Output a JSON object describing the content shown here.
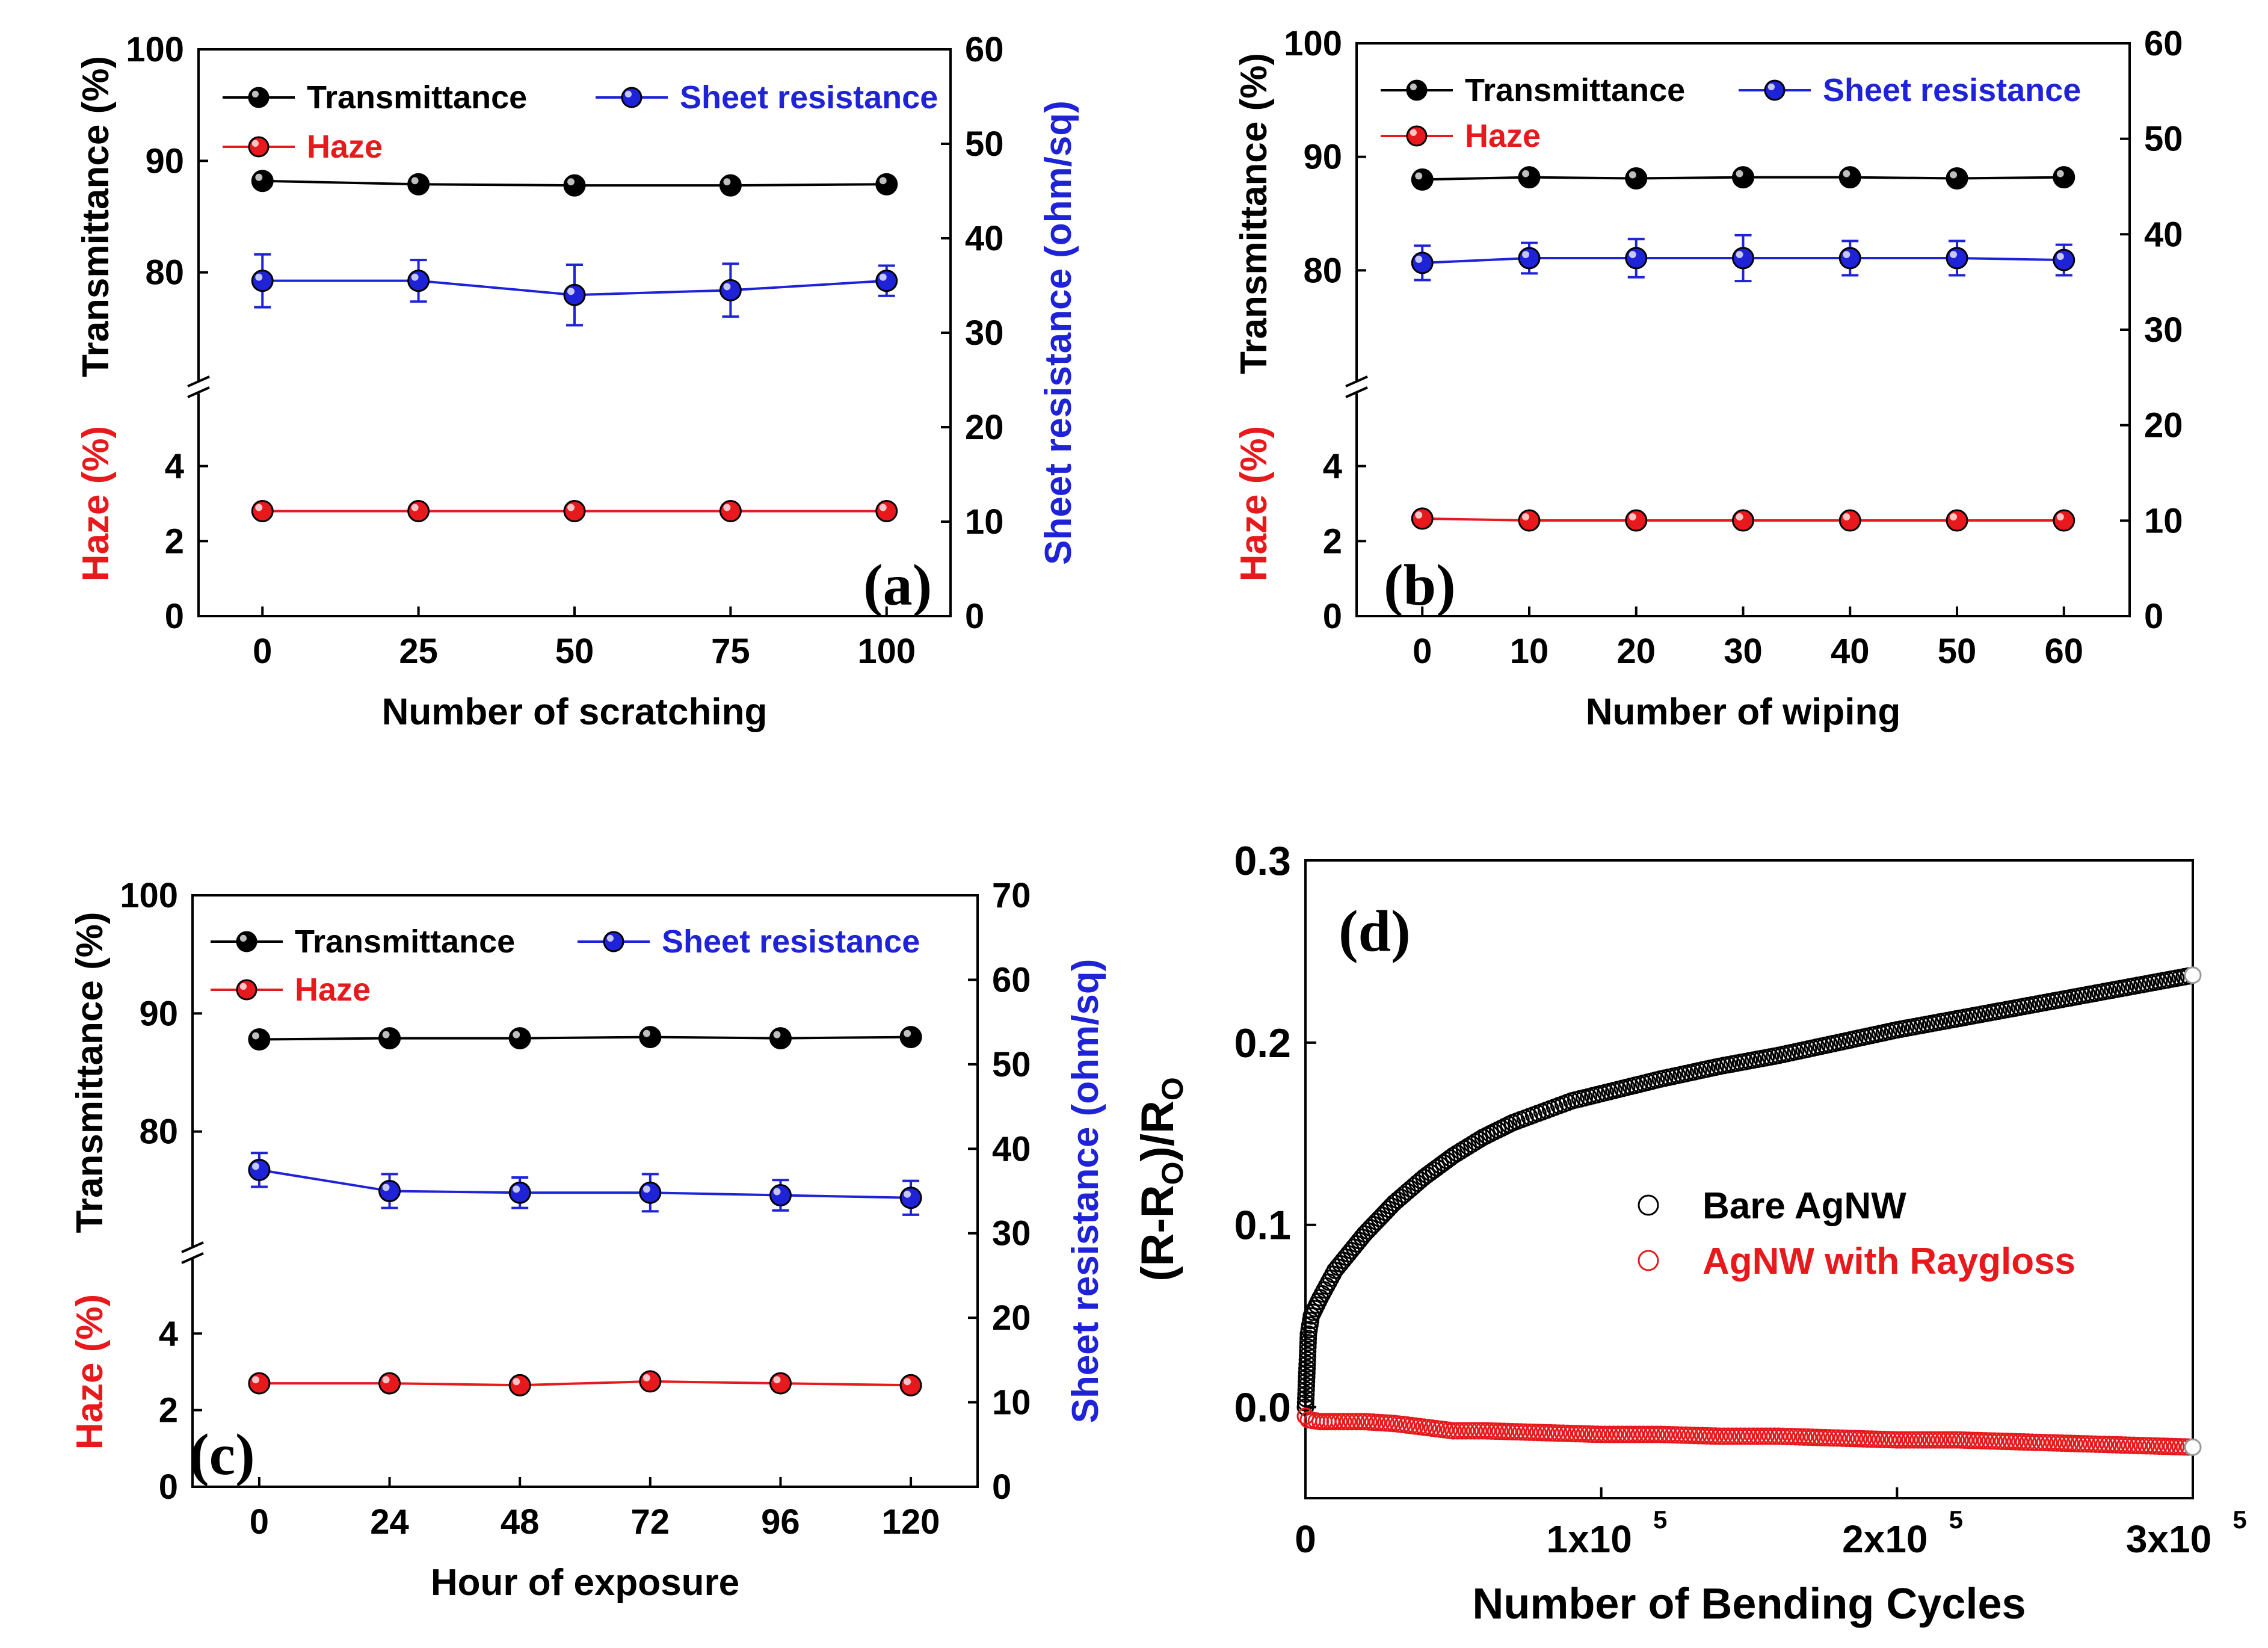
{
  "chart_data": [
    {
      "id": "a",
      "type": "line",
      "panel_label": "(a)",
      "xlabel": "Number of scratching",
      "x": [
        0,
        25,
        50,
        75,
        100
      ],
      "x_ticks": [
        "0",
        "25",
        "50",
        "75",
        "100"
      ],
      "ylabel_upper": "Transmittance (%)",
      "ylabel_lower": "Haze (%)",
      "ylabel_right": "Sheet resistance (ohm/sq)",
      "yticks_upper": [
        "80",
        "90",
        "100"
      ],
      "yticks_lower": [
        "0",
        "2",
        "4"
      ],
      "yticks_right": [
        "0",
        "10",
        "20",
        "30",
        "40",
        "50",
        "60"
      ],
      "ylim_upper": [
        70,
        100
      ],
      "ylim_lower": [
        0,
        6
      ],
      "ylim_right": [
        0,
        60
      ],
      "legend": {
        "transmittance": "Transmittance",
        "sheet": "Sheet resistance",
        "haze": "Haze"
      },
      "series": [
        {
          "name": "Transmittance",
          "axis": "left-upper",
          "color": "#000000",
          "values": [
            88.2,
            87.9,
            87.8,
            87.8,
            87.9
          ]
        },
        {
          "name": "Sheet resistance",
          "axis": "right",
          "color": "#1f23d8",
          "values": [
            35.5,
            35.5,
            34.0,
            34.5,
            35.5
          ],
          "errors": [
            2.8,
            2.2,
            3.2,
            2.8,
            1.6
          ]
        },
        {
          "name": "Haze",
          "axis": "left-lower",
          "color": "#e8191c",
          "values": [
            2.8,
            2.8,
            2.8,
            2.8,
            2.8
          ]
        }
      ]
    },
    {
      "id": "b",
      "type": "line",
      "panel_label": "(b)",
      "xlabel": "Number of wiping",
      "x": [
        0,
        10,
        20,
        30,
        40,
        50,
        60
      ],
      "x_ticks": [
        "0",
        "10",
        "20",
        "30",
        "40",
        "50",
        "60"
      ],
      "ylabel_upper": "Transmittance (%)",
      "ylabel_lower": "Haze (%)",
      "ylabel_right": "",
      "yticks_upper": [
        "80",
        "90",
        "100"
      ],
      "yticks_lower": [
        "0",
        "2",
        "4"
      ],
      "yticks_right": [
        "0",
        "10",
        "20",
        "30",
        "40",
        "50",
        "60"
      ],
      "ylim_upper": [
        70,
        100
      ],
      "ylim_lower": [
        0,
        6
      ],
      "ylim_right": [
        0,
        60
      ],
      "legend": {
        "transmittance": "Transmittance",
        "sheet": "Sheet resistance",
        "haze": "Haze"
      },
      "series": [
        {
          "name": "Transmittance",
          "axis": "left-upper",
          "color": "#000000",
          "values": [
            88.0,
            88.2,
            88.1,
            88.2,
            88.2,
            88.1,
            88.2
          ]
        },
        {
          "name": "Sheet resistance",
          "axis": "right",
          "color": "#1f23d8",
          "values": [
            37.0,
            37.5,
            37.5,
            37.5,
            37.5,
            37.5,
            37.3
          ],
          "errors": [
            1.8,
            1.6,
            2.0,
            2.4,
            1.8,
            1.8,
            1.6
          ]
        },
        {
          "name": "Haze",
          "axis": "left-lower",
          "color": "#e8191c",
          "values": [
            2.6,
            2.55,
            2.55,
            2.55,
            2.55,
            2.55,
            2.55
          ]
        }
      ]
    },
    {
      "id": "c",
      "type": "line",
      "panel_label": "(c)",
      "xlabel": "Hour of exposure",
      "x": [
        0,
        24,
        48,
        72,
        96,
        120
      ],
      "x_ticks": [
        "0",
        "24",
        "48",
        "72",
        "96",
        "120"
      ],
      "ylabel_upper": "Transmittance (%)",
      "ylabel_lower": "Haze (%)",
      "ylabel_right": "Sheet resistance (ohm/sq)",
      "yticks_upper": [
        "80",
        "90",
        "100"
      ],
      "yticks_lower": [
        "0",
        "2",
        "4"
      ],
      "yticks_right": [
        "0",
        "10",
        "20",
        "30",
        "40",
        "50",
        "60",
        "70"
      ],
      "ylim_upper": [
        70,
        100
      ],
      "ylim_lower": [
        0,
        6
      ],
      "ylim_right": [
        0,
        70
      ],
      "legend": {
        "transmittance": "Transmittance",
        "sheet": "Sheet resistance",
        "haze": "Haze"
      },
      "series": [
        {
          "name": "Transmittance",
          "axis": "left-upper",
          "color": "#000000",
          "values": [
            87.8,
            87.9,
            87.9,
            88.0,
            87.9,
            88.0
          ]
        },
        {
          "name": "Sheet resistance",
          "axis": "right",
          "color": "#1f23d8",
          "values": [
            37.5,
            35.0,
            34.8,
            34.8,
            34.5,
            34.2
          ],
          "errors": [
            2.0,
            2.0,
            1.8,
            2.2,
            1.8,
            2.0
          ]
        },
        {
          "name": "Haze",
          "axis": "left-lower",
          "color": "#e8191c",
          "values": [
            2.7,
            2.7,
            2.65,
            2.75,
            2.7,
            2.65
          ]
        }
      ]
    },
    {
      "id": "d",
      "type": "scatter",
      "panel_label": "(d)",
      "xlabel": "Number of Bending Cycles",
      "ylabel": "(R-Ro)/Ro",
      "ylabel_main": "(R-R",
      "ylabel_sub": "O",
      "ylabel_mid": ")/R",
      "ylabel_sub2": "O",
      "xlim": [
        0,
        300000
      ],
      "ylim": [
        -0.05,
        0.3
      ],
      "x_ticks": [
        {
          "value": 0,
          "label": "0",
          "base": "",
          "exp": ""
        },
        {
          "value": 100000,
          "label": "",
          "base": "1x10",
          "exp": "5"
        },
        {
          "value": 200000,
          "label": "",
          "base": "2x10",
          "exp": "5"
        },
        {
          "value": 300000,
          "label": "",
          "base": "3x10",
          "exp": "5"
        }
      ],
      "y_ticks": [
        "0.0",
        "0.1",
        "0.2",
        "0.3"
      ],
      "y_tick_values": [
        0.0,
        0.1,
        0.2,
        0.3
      ],
      "legend": {
        "bare": "Bare AgNW",
        "raygloss": "AgNW with Raygloss"
      },
      "series": [
        {
          "name": "Bare AgNW",
          "color": "#000000",
          "x": [
            0,
            1000,
            2000,
            5000,
            10000,
            20000,
            30000,
            40000,
            50000,
            60000,
            70000,
            80000,
            90000,
            100000,
            120000,
            140000,
            160000,
            180000,
            200000,
            220000,
            240000,
            260000,
            280000,
            300000
          ],
          "values": [
            0.0,
            0.04,
            0.05,
            0.06,
            0.075,
            0.095,
            0.112,
            0.126,
            0.138,
            0.148,
            0.156,
            0.162,
            0.168,
            0.172,
            0.18,
            0.187,
            0.193,
            0.2,
            0.207,
            0.213,
            0.219,
            0.225,
            0.231,
            0.237
          ]
        },
        {
          "name": "AgNW with Raygloss",
          "color": "#e8191c",
          "x": [
            0,
            1000,
            5000,
            10000,
            20000,
            30000,
            40000,
            50000,
            60000,
            80000,
            100000,
            120000,
            140000,
            160000,
            180000,
            200000,
            220000,
            240000,
            260000,
            280000,
            300000
          ],
          "values": [
            -0.005,
            -0.007,
            -0.008,
            -0.008,
            -0.008,
            -0.009,
            -0.011,
            -0.013,
            -0.013,
            -0.014,
            -0.015,
            -0.015,
            -0.016,
            -0.016,
            -0.017,
            -0.018,
            -0.018,
            -0.019,
            -0.02,
            -0.021,
            -0.022
          ]
        }
      ]
    }
  ]
}
